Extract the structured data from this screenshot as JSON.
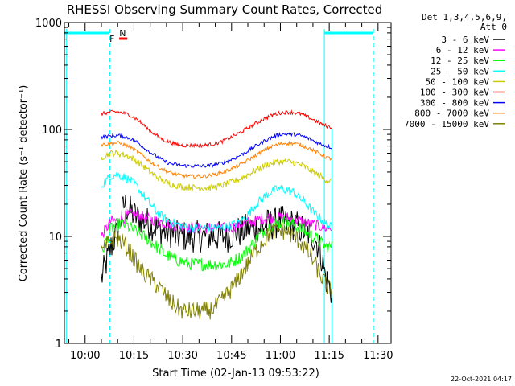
{
  "chart_data": {
    "type": "line",
    "title": "RHESSI Observing Summary Count Rates, Corrected",
    "xlabel": "Start Time (02-Jan-13 09:53:22)",
    "ylabel": "Corrected Count Rate (s⁻¹ detector⁻¹)",
    "yscale": "log",
    "ylim": [
      1,
      1000
    ],
    "xlim_minutes": [
      -6.37,
      94.0
    ],
    "x_ticks": [
      {
        "minutes": 0,
        "label": "10:00"
      },
      {
        "minutes": 15,
        "label": "10:15"
      },
      {
        "minutes": 30,
        "label": "10:30"
      },
      {
        "minutes": 45,
        "label": "10:45"
      },
      {
        "minutes": 60,
        "label": "11:00"
      },
      {
        "minutes": 75,
        "label": "11:15"
      },
      {
        "minutes": 90,
        "label": "11:30"
      }
    ],
    "y_ticks": [
      {
        "value": 1,
        "label": "1"
      },
      {
        "value": 10,
        "label": "10"
      },
      {
        "value": 100,
        "label": "100"
      },
      {
        "value": 1000,
        "label": "1000"
      }
    ],
    "legend_header": [
      "Det 1,3,4,5,6,9,",
      "Att 0"
    ],
    "x_sample_minutes": [
      5,
      8,
      10,
      12,
      14,
      16,
      18,
      20,
      22,
      24,
      26,
      28,
      30,
      32,
      34,
      36,
      38,
      40,
      42,
      44,
      46,
      48,
      50,
      52,
      54,
      56,
      58,
      60,
      62,
      64,
      66,
      68,
      70,
      72,
      74,
      75.8
    ],
    "series": [
      {
        "name": "3 - 6 keV",
        "color": "#000000",
        "values": [
          4,
          8,
          11,
          20,
          17,
          15,
          14,
          13,
          12,
          11,
          11,
          10,
          10,
          10,
          10,
          10,
          10,
          10,
          10,
          10,
          11,
          11,
          12,
          12,
          12,
          13,
          13,
          14,
          13,
          13,
          12,
          11,
          10,
          8,
          4,
          3
        ]
      },
      {
        "name": "6 - 12 keV",
        "color": "#ff00ff",
        "values": [
          10,
          14,
          14,
          15,
          16,
          16,
          15,
          14.5,
          14,
          13.5,
          13,
          12.5,
          12.5,
          12,
          12,
          12,
          12,
          12,
          12,
          12,
          12.5,
          13,
          13.5,
          14,
          14.5,
          15,
          15,
          15,
          15,
          14.5,
          14,
          13.5,
          13,
          12.5,
          12,
          12
        ]
      },
      {
        "name": "12 - 25 keV",
        "color": "#00ff00",
        "values": [
          7,
          12,
          13,
          13,
          12,
          11,
          10,
          9,
          8,
          7,
          6.5,
          6,
          5.8,
          5.5,
          5.5,
          5.5,
          5.5,
          5.5,
          5.5,
          5.5,
          6,
          6.5,
          7.5,
          9,
          10.5,
          12,
          13,
          13.5,
          13.5,
          13,
          12,
          11,
          10,
          9,
          8,
          8
        ]
      },
      {
        "name": "25 - 50 keV",
        "color": "#00ffff",
        "values": [
          30,
          37,
          38,
          36,
          33,
          29,
          24,
          20,
          17,
          15,
          14,
          13,
          12.5,
          12,
          12,
          12,
          12,
          12,
          12,
          12.5,
          13,
          14,
          16,
          19,
          22,
          25,
          27,
          28,
          27,
          26,
          23,
          20,
          17,
          15,
          13,
          12
        ]
      },
      {
        "name": "50 - 100 keV",
        "color": "#cccc00",
        "values": [
          55,
          60,
          60,
          58,
          55,
          50,
          45,
          40,
          36,
          33,
          31,
          30,
          29,
          29,
          28.5,
          28.5,
          28.5,
          29,
          30,
          31.5,
          33,
          35,
          38,
          41,
          44,
          47,
          49,
          50,
          50,
          49,
          47,
          44,
          40,
          37,
          34,
          33
        ]
      },
      {
        "name": "100 - 300 keV",
        "color": "#ff0000",
        "values": [
          140,
          145,
          146,
          142,
          135,
          124,
          110,
          97,
          88,
          80,
          76,
          73,
          71,
          71,
          71,
          71,
          72,
          74,
          77,
          82,
          88,
          95,
          103,
          112,
          121,
          130,
          138,
          143,
          145,
          144,
          140,
          133,
          124,
          115,
          108,
          105
        ]
      },
      {
        "name": "300 - 800 keV",
        "color": "#0000ff",
        "values": [
          85,
          87,
          88,
          86,
          82,
          76,
          68,
          61,
          56,
          51,
          48,
          47,
          46,
          45.5,
          45.5,
          45.5,
          46,
          47,
          48.5,
          51,
          54,
          58,
          63,
          69,
          75,
          81,
          86,
          90,
          91,
          90,
          88,
          84,
          79,
          74,
          70,
          68
        ]
      },
      {
        "name": "800 - 7000 keV",
        "color": "#ff8000",
        "values": [
          72,
          74,
          75,
          72,
          68,
          62,
          56,
          50,
          45.5,
          42,
          39.5,
          38,
          37,
          36.5,
          36.5,
          36.5,
          37,
          38,
          39.5,
          41.5,
          44,
          47.5,
          51.5,
          56,
          61,
          66,
          70.5,
          73.5,
          74.5,
          74,
          72,
          68.5,
          64,
          59.5,
          55,
          53
        ]
      },
      {
        "name": "7000 - 15000 keV",
        "color": "#808000",
        "values": [
          7,
          9.5,
          9.5,
          8.5,
          7,
          5.5,
          4.5,
          4,
          3.5,
          3,
          2.5,
          2.2,
          2,
          2,
          2,
          2,
          2,
          2.2,
          2.5,
          3,
          3.5,
          4.5,
          5.5,
          7,
          8.5,
          10,
          11,
          11.5,
          11,
          10,
          9,
          7.5,
          6,
          4.5,
          3.5,
          3
        ]
      }
    ],
    "annotations": {
      "segments": [
        {
          "label": "F",
          "color": "#ff0000",
          "start_minutes": 8,
          "end_minutes": 10.5
        },
        {
          "label": "N",
          "color": "#00ffff",
          "start_minutes": 9.5,
          "end_minutes": 9.5
        }
      ],
      "night_bars": [
        {
          "start_minutes": -6.37,
          "end_minutes": 7.5
        },
        {
          "start_minutes": 73.5,
          "end_minutes": 88.5
        }
      ],
      "solid_verticals_minutes": [
        -5.8,
        73.5
      ],
      "dashed_verticals_minutes": [
        7.6,
        88.6
      ],
      "right_edge_minutes": 75.8
    },
    "timestamp": "22-Oct-2021 04:17"
  }
}
